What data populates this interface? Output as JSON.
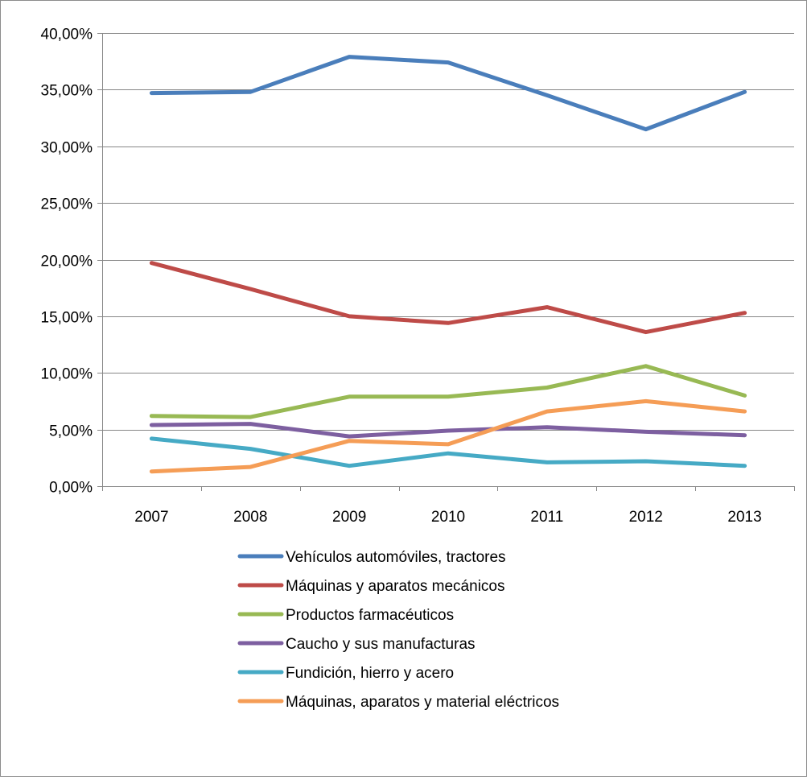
{
  "chart_data": {
    "type": "line",
    "categories": [
      "2007",
      "2008",
      "2009",
      "2010",
      "2011",
      "2012",
      "2013"
    ],
    "ylim": [
      0,
      40
    ],
    "yticks": [
      0,
      5,
      10,
      15,
      20,
      25,
      30,
      35,
      40
    ],
    "ytick_labels": [
      "0,00%",
      "5,00%",
      "10,00%",
      "15,00%",
      "20,00%",
      "25,00%",
      "30,00%",
      "35,00%",
      "40,00%"
    ],
    "grid": "horizontal",
    "legend_position": "bottom",
    "series": [
      {
        "name": "Vehículos automóviles, tractores",
        "color": "#4a7ebb",
        "values": [
          34.7,
          34.8,
          37.9,
          37.4,
          34.5,
          31.5,
          34.8
        ]
      },
      {
        "name": "Máquinas y aparatos mecánicos",
        "color": "#be4b48",
        "values": [
          19.7,
          17.4,
          15.0,
          14.4,
          15.8,
          13.6,
          15.3
        ]
      },
      {
        "name": "Productos farmacéuticos",
        "color": "#98b954",
        "values": [
          6.2,
          6.1,
          7.9,
          7.9,
          8.7,
          10.6,
          8.0
        ]
      },
      {
        "name": "Caucho y sus manufacturas",
        "color": "#7d5fa0",
        "values": [
          5.4,
          5.5,
          4.4,
          4.9,
          5.2,
          4.8,
          4.5
        ]
      },
      {
        "name": "Fundición, hierro y acero",
        "color": "#46aac5",
        "values": [
          4.2,
          3.3,
          1.8,
          2.9,
          2.1,
          2.2,
          1.8
        ]
      },
      {
        "name": "Máquinas, aparatos y material eléctricos",
        "color": "#f59d56",
        "values": [
          1.3,
          1.7,
          4.0,
          3.7,
          6.6,
          7.5,
          6.6
        ]
      }
    ]
  }
}
